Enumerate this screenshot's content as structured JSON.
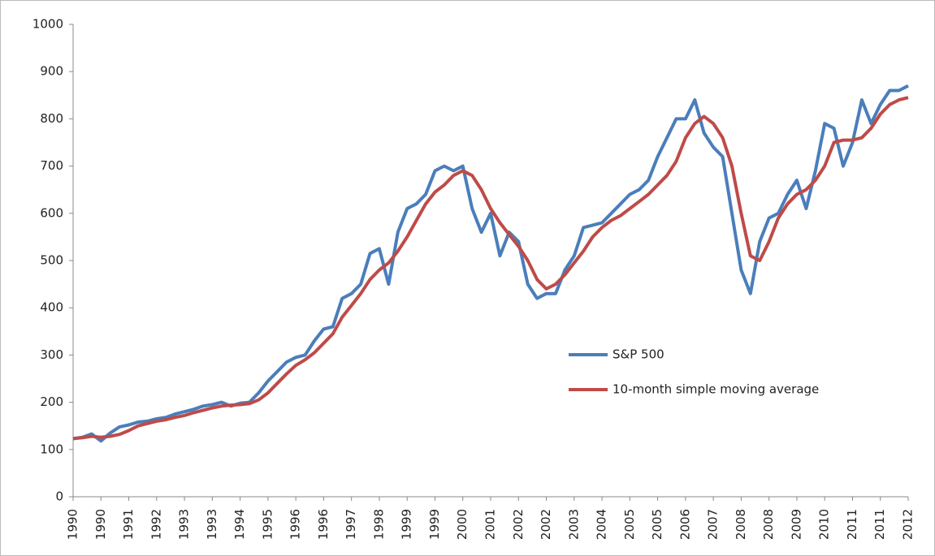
{
  "chart_data": {
    "type": "line",
    "categories": [
      "1990",
      null,
      null,
      "1990",
      null,
      null,
      "1991",
      null,
      null,
      "1992",
      null,
      null,
      "1993",
      null,
      null,
      "1993",
      null,
      null,
      "1994",
      null,
      null,
      "1995",
      null,
      null,
      "1996",
      null,
      null,
      "1996",
      null,
      null,
      "1997",
      null,
      null,
      "1998",
      null,
      null,
      "1999",
      null,
      null,
      "1999",
      null,
      null,
      "2000",
      null,
      null,
      "2001",
      null,
      null,
      "2002",
      null,
      null,
      "2002",
      null,
      null,
      "2003",
      null,
      null,
      "2004",
      null,
      null,
      "2005",
      null,
      null,
      "2005",
      null,
      null,
      "2006",
      null,
      null,
      "2007",
      null,
      null,
      "2008",
      null,
      null,
      "2008",
      null,
      null,
      "2009",
      null,
      null,
      "2010",
      null,
      null,
      "2011",
      null,
      null,
      "2011",
      null,
      null,
      "2012"
    ],
    "series": [
      {
        "name": "S&P 500",
        "color": "#4a7ebb",
        "values": [
          123,
          126,
          133,
          118,
          135,
          148,
          152,
          158,
          160,
          165,
          168,
          175,
          180,
          185,
          192,
          195,
          200,
          192,
          198,
          200,
          220,
          245,
          265,
          285,
          295,
          300,
          330,
          355,
          360,
          420,
          430,
          450,
          515,
          525,
          450,
          560,
          610,
          620,
          640,
          690,
          700,
          690,
          700,
          610,
          560,
          600,
          510,
          560,
          540,
          450,
          420,
          430,
          430,
          480,
          510,
          570,
          575,
          580,
          600,
          620,
          640,
          650,
          670,
          720,
          760,
          800,
          800,
          840,
          770,
          740,
          720,
          600,
          480,
          430,
          540,
          590,
          600,
          640,
          670,
          610,
          690,
          790,
          780,
          700,
          750,
          840,
          790,
          830,
          860,
          860,
          870
        ]
      },
      {
        "name": "10-month simple moving average",
        "color": "#be4b48",
        "values": [
          123,
          125,
          128,
          126,
          128,
          132,
          140,
          150,
          155,
          160,
          163,
          168,
          172,
          178,
          183,
          188,
          192,
          194,
          195,
          197,
          205,
          220,
          240,
          260,
          278,
          290,
          305,
          325,
          345,
          380,
          405,
          430,
          460,
          480,
          495,
          520,
          550,
          585,
          620,
          645,
          660,
          680,
          690,
          680,
          650,
          610,
          580,
          555,
          530,
          500,
          460,
          440,
          450,
          470,
          495,
          520,
          550,
          570,
          585,
          595,
          610,
          625,
          640,
          660,
          680,
          710,
          760,
          790,
          805,
          790,
          760,
          700,
          600,
          510,
          500,
          540,
          590,
          620,
          640,
          650,
          670,
          700,
          750,
          755,
          755,
          760,
          780,
          810,
          830,
          840,
          845
        ]
      }
    ],
    "ylim": [
      0,
      1000
    ],
    "yticks": [
      0,
      100,
      200,
      300,
      400,
      500,
      600,
      700,
      800,
      900,
      1000
    ],
    "grid": false
  }
}
